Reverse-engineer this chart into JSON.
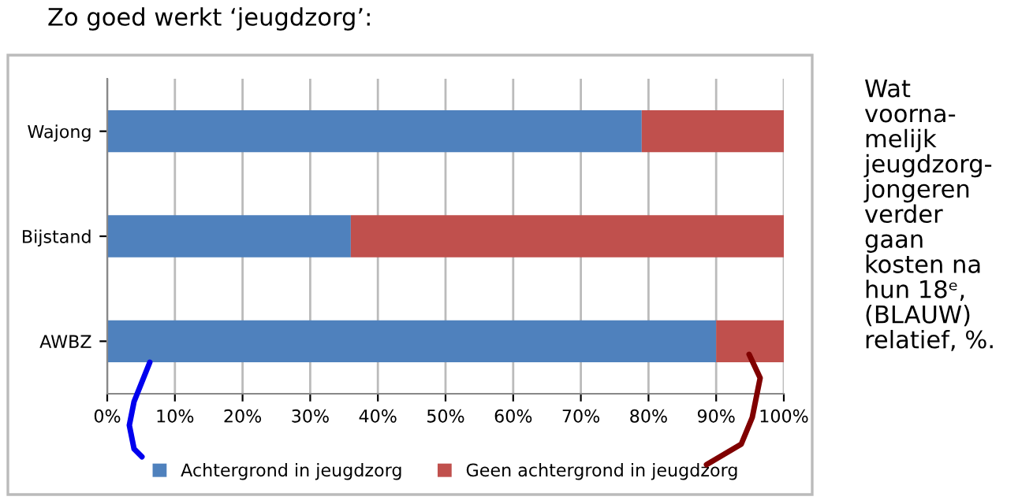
{
  "chart_data": {
    "type": "bar",
    "orientation": "horizontal",
    "stacked": true,
    "title": "Zo goed werkt ‘jeugdzorg’:",
    "categories": [
      "Wajong",
      "Bijstand",
      "AWBZ"
    ],
    "series": [
      {
        "name": "Achtergrond in jeugdzorg",
        "color": "#4f81bd",
        "values": [
          79,
          36,
          90
        ]
      },
      {
        "name": "Geen achtergrond in jeugdzorg",
        "color": "#c0504d",
        "values": [
          21,
          64,
          10
        ]
      }
    ],
    "xlim": [
      0,
      100
    ],
    "xticks": [
      {
        "value": 0,
        "label": "0%"
      },
      {
        "value": 10,
        "label": "10%"
      },
      {
        "value": 20,
        "label": "20%"
      },
      {
        "value": 30,
        "label": "30%"
      },
      {
        "value": 40,
        "label": "40%"
      },
      {
        "value": 50,
        "label": "50%"
      },
      {
        "value": 60,
        "label": "60%"
      },
      {
        "value": 70,
        "label": "70%"
      },
      {
        "value": 80,
        "label": "80%"
      },
      {
        "value": 90,
        "label": "90%"
      },
      {
        "value": 100,
        "label": "100%"
      }
    ],
    "grid": "x",
    "legend": "bottom",
    "annotations": [
      "Wat\nvoorna-\nmelijk\njeugdzorg-\njongeren\nverder\ngaan\nkosten na\nhun 18ᵉ,\n(BLAUW)\nrelatief, %."
    ]
  }
}
